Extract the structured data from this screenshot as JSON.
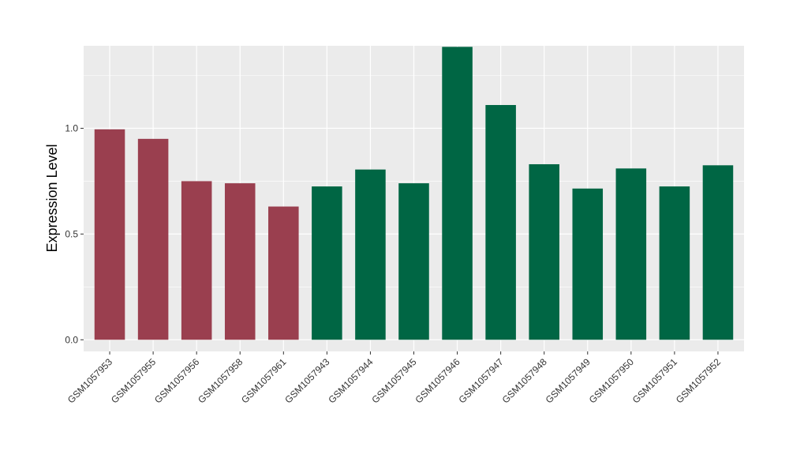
{
  "chart_data": {
    "type": "bar",
    "title": "",
    "xlabel": "",
    "ylabel": "Expression Level",
    "ylim": [
      -0.055,
      1.39
    ],
    "yticks": [
      0.0,
      0.5,
      1.0
    ],
    "ytick_labels": [
      "0.0",
      "0.5",
      "1.0"
    ],
    "grid": true,
    "legend": "none",
    "categories": [
      "GSM1057953",
      "GSM1057955",
      "GSM1057956",
      "GSM1057958",
      "GSM1057961",
      "GSM1057943",
      "GSM1057944",
      "GSM1057945",
      "GSM1057946",
      "GSM1057947",
      "GSM1057948",
      "GSM1057949",
      "GSM1057950",
      "GSM1057951",
      "GSM1057952"
    ],
    "values": [
      0.995,
      0.95,
      0.75,
      0.74,
      0.63,
      0.725,
      0.805,
      0.74,
      1.385,
      1.11,
      0.83,
      0.715,
      0.81,
      0.725,
      0.825
    ],
    "groups": [
      0,
      0,
      0,
      0,
      0,
      1,
      1,
      1,
      1,
      1,
      1,
      1,
      1,
      1,
      1
    ],
    "group_colors": [
      "#9A3F4F",
      "#006644"
    ]
  }
}
